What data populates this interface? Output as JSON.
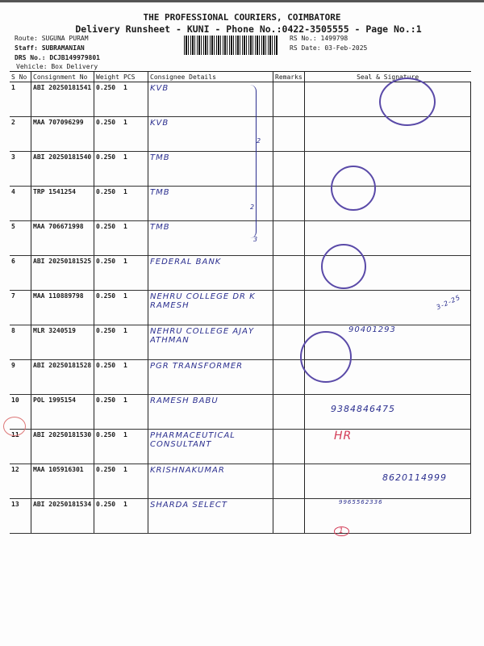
{
  "header": {
    "title": "THE PROFESSIONAL COURIERS, COIMBATORE",
    "subtitle": "Delivery Runsheet - KUNI - Phone No.:0422-3505555 - Page No.:1",
    "route": "Route: SUGUNA PURAM",
    "staff": "Staff: SUBRAMANIAN",
    "drs": "DRS No.: DCJB149979801",
    "vehicle": "Vehicle: Box Delivery",
    "rs_no": "RS No.: 1499798",
    "rs_date": "RS Date: 03-Feb-2025"
  },
  "table": {
    "columns": [
      "S No",
      "Consignment No",
      "Weight",
      "PCS",
      "Consignee Details",
      "Remarks",
      "Seal & Signature"
    ],
    "rows": [
      {
        "sno": "1",
        "cn": "ABI 20250181541",
        "weight": "0.250",
        "pcs": "1",
        "consignee": "KVB"
      },
      {
        "sno": "2",
        "cn": "MAA 707096299",
        "weight": "0.250",
        "pcs": "1",
        "consignee": "KVB"
      },
      {
        "sno": "3",
        "cn": "ABI 20250181540",
        "weight": "0.250",
        "pcs": "1",
        "consignee": "TMB"
      },
      {
        "sno": "4",
        "cn": "TRP 1541254",
        "weight": "0.250",
        "pcs": "1",
        "consignee": "TMB"
      },
      {
        "sno": "5",
        "cn": "MAA 706671998",
        "weight": "0.250",
        "pcs": "1",
        "consignee": "TMB"
      },
      {
        "sno": "6",
        "cn": "ABI 20250181525",
        "weight": "0.250",
        "pcs": "1",
        "consignee": "FEDERAL BANK"
      },
      {
        "sno": "7",
        "cn": "MAA 110889798",
        "weight": "0.250",
        "pcs": "1",
        "consignee": "NEHRU COLLEGE DR K RAMESH"
      },
      {
        "sno": "8",
        "cn": "MLR 3240519",
        "weight": "0.250",
        "pcs": "1",
        "consignee": "NEHRU COLLEGE AJAY ATHMAN"
      },
      {
        "sno": "9",
        "cn": "ABI 20250181528",
        "weight": "0.250",
        "pcs": "1",
        "consignee": "PGR TRANSFORMER"
      },
      {
        "sno": "10",
        "cn": "POL 1995154",
        "weight": "0.250",
        "pcs": "1",
        "consignee": "RAMESH BABU"
      },
      {
        "sno": "11",
        "cn": "ABI 20250181530",
        "weight": "0.250",
        "pcs": "1",
        "consignee": "PHARMACEUTICAL CONSULTANT"
      },
      {
        "sno": "12",
        "cn": "MAA 105916301",
        "weight": "0.250",
        "pcs": "1",
        "consignee": "KRISHNAKUMAR"
      },
      {
        "sno": "13",
        "cn": "ABI 20250181534",
        "weight": "0.250",
        "pcs": "1",
        "consignee": "SHARDA SELECT"
      }
    ]
  },
  "annotations": {
    "group1": "2",
    "group2": "2",
    "group3": "3",
    "date_note": "3-2-25",
    "phone_row9": "90401293",
    "sign_row10": "9384846475",
    "hr_row11": "HR",
    "phone_row12": "8620114999",
    "phone_row13": "9965562336",
    "circled_bottom": "1"
  },
  "colors": {
    "ink": "#2b2f8f",
    "stamp": "#5a4aa8",
    "red_ink": "#d33a55"
  }
}
